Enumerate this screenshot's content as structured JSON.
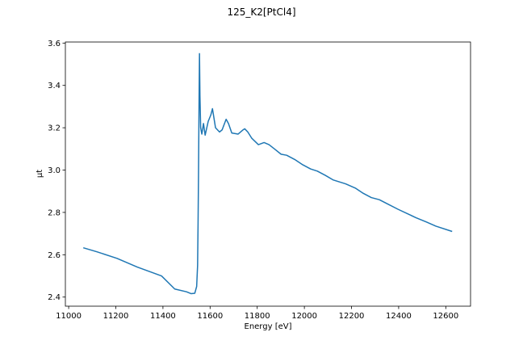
{
  "chart_data": {
    "type": "line",
    "title": "125_K2[PtCl4]",
    "xlabel": "Energy [eV]",
    "ylabel": "μt",
    "x": [
      11062,
      11120,
      11205,
      11291,
      11394,
      11450,
      11500,
      11520,
      11535,
      11543,
      11547,
      11549,
      11551,
      11553,
      11555,
      11557,
      11560,
      11565,
      11572,
      11579,
      11592,
      11603,
      11610,
      11623,
      11640,
      11651,
      11668,
      11678,
      11692,
      11719,
      11740,
      11747,
      11760,
      11777,
      11805,
      11829,
      11850,
      11873,
      11901,
      11925,
      11959,
      11993,
      12027,
      12055,
      12089,
      12123,
      12175,
      12216,
      12250,
      12284,
      12318,
      12353,
      12397,
      12445,
      12473,
      12517,
      12558,
      12627
    ],
    "series": [
      {
        "name": "μt",
        "color": "#1f77b4",
        "values": [
          2.633,
          2.614,
          2.583,
          2.542,
          2.5,
          2.438,
          2.425,
          2.416,
          2.418,
          2.45,
          2.55,
          2.75,
          3.0,
          3.3,
          3.55,
          3.35,
          3.2,
          3.17,
          3.22,
          3.165,
          3.23,
          3.26,
          3.29,
          3.2,
          3.18,
          3.19,
          3.24,
          3.22,
          3.175,
          3.17,
          3.19,
          3.195,
          3.18,
          3.15,
          3.12,
          3.13,
          3.12,
          3.1,
          3.075,
          3.07,
          3.05,
          3.025,
          3.005,
          2.995,
          2.975,
          2.953,
          2.935,
          2.915,
          2.89,
          2.87,
          2.86,
          2.84,
          2.815,
          2.79,
          2.775,
          2.755,
          2.735,
          2.71
        ]
      }
    ],
    "xlim": [
      10986,
      12705
    ],
    "ylim": [
      2.357,
      3.605
    ],
    "xticks": [
      11000,
      11200,
      11400,
      11600,
      11800,
      12000,
      12200,
      12400,
      12600
    ],
    "yticks": [
      2.4,
      2.6,
      2.8,
      {
        "value": 3,
        "label": "3.0"
      },
      3.2,
      3.4,
      3.6
    ],
    "grid": false
  }
}
